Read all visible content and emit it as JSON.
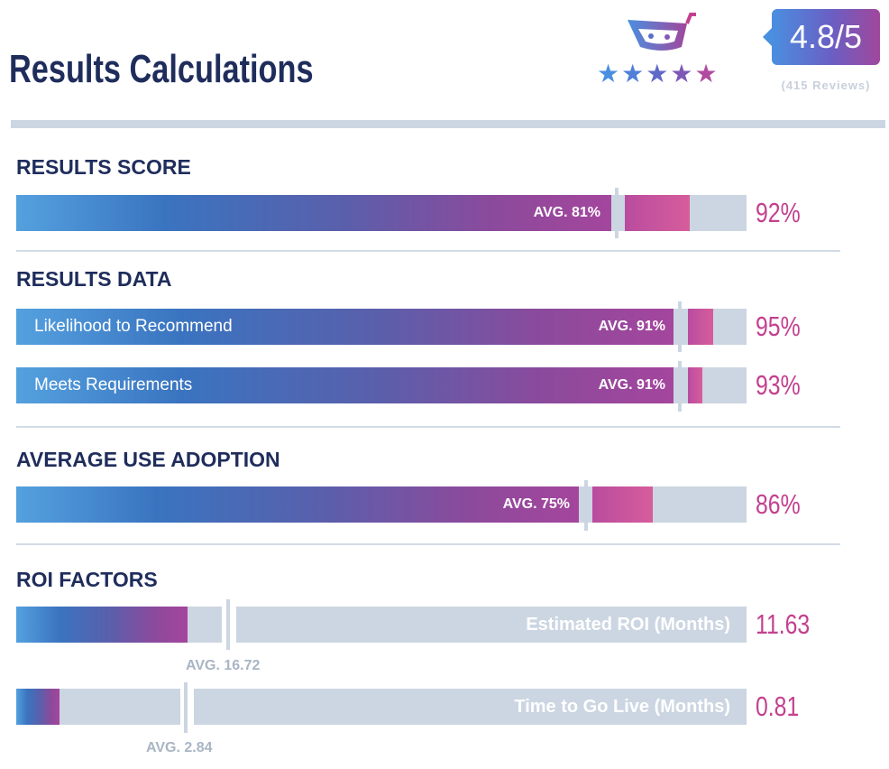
{
  "page_title": "Results Calculations",
  "rating": {
    "score": "4.8/5",
    "reviews": "(415 Reviews)",
    "stars": 5,
    "logo_icon": "trustradius-cart-icon"
  },
  "colors": {
    "navy": "#1f2d5c",
    "accent": "#c4408f",
    "track": "#ccd6e2"
  },
  "chart_data": [
    {
      "type": "bar",
      "title": "RESULTS SCORE",
      "bars": [
        {
          "label": "",
          "value": 92,
          "value_text": "92%",
          "avg": 81,
          "avg_text": "AVG. 81%"
        }
      ]
    },
    {
      "type": "bar",
      "title": "RESULTS DATA",
      "bars": [
        {
          "label": "Likelihood to Recommend",
          "value": 95,
          "value_text": "95%",
          "avg": 91,
          "avg_text": "AVG. 91%"
        },
        {
          "label": "Meets Requirements",
          "value": 93,
          "value_text": "93%",
          "avg": 91,
          "avg_text": "AVG. 91%"
        }
      ]
    },
    {
      "type": "bar",
      "title": "AVERAGE USE ADOPTION",
      "bars": [
        {
          "label": "",
          "value": 86,
          "value_text": "86%",
          "avg": 75,
          "avg_text": "AVG. 75%"
        }
      ]
    },
    {
      "type": "bar",
      "title": "ROI FACTORS",
      "bars": [
        {
          "label": "Estimated ROI (Months)",
          "value": 11.63,
          "value_text": "11.63",
          "avg": 16.72,
          "avg_text": "AVG. 16.72"
        },
        {
          "label": "Time to Go Live (Months)",
          "value": 0.81,
          "value_text": "0.81",
          "avg": 2.84,
          "avg_text": "AVG. 2.84"
        }
      ]
    }
  ]
}
